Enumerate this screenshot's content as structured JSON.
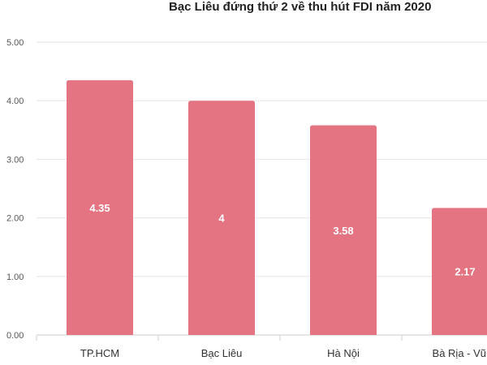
{
  "chart_data": {
    "type": "bar",
    "title": "Bạc Liêu đứng thứ 2 về thu hút FDI năm 2020",
    "categories": [
      "TP.HCM",
      "Bạc Liêu",
      "Hà Nội",
      "Bà Rịa - Vũng"
    ],
    "values": [
      4.35,
      4,
      3.58,
      2.17
    ],
    "data_labels": [
      "4.35",
      "4",
      "3.58",
      "2.17"
    ],
    "y_ticks": [
      "0.00",
      "1.00",
      "2.00",
      "3.00",
      "4.00",
      "5.00"
    ],
    "ylim": [
      0,
      5
    ],
    "grid": true,
    "bar_color": "#e57482"
  }
}
